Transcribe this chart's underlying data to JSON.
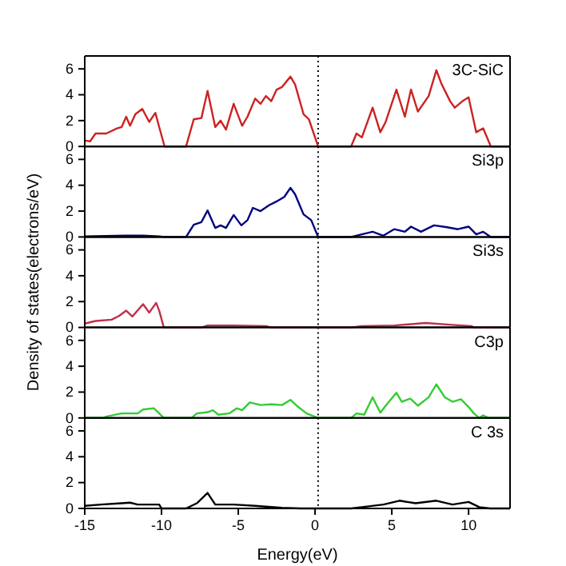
{
  "chart_data": [
    {
      "type": "line",
      "annotations": [
        "3C-SiC"
      ],
      "xlim": [
        -15,
        12.7
      ],
      "xticks": [
        -15,
        -10,
        -5,
        0,
        5,
        10
      ],
      "ylim": [
        0,
        7
      ],
      "yticks": [
        0,
        2,
        4,
        6
      ],
      "tick_labels": "y",
      "ref_lines": [
        {
          "axis": "x",
          "value": 0.2,
          "color": "#000000",
          "line_style": "dotted"
        }
      ],
      "series": [
        {
          "color": "#cc2222",
          "x": [
            -15,
            -14.65,
            -14.3,
            -13.6,
            -12.9,
            -12.6,
            -12.3,
            -12.05,
            -11.7,
            -11.25,
            -10.8,
            -10.4,
            -10.15,
            -9.8,
            -8.4,
            -7.9,
            -7.4,
            -7.0,
            -6.5,
            -6.15,
            -5.8,
            -5.3,
            -4.75,
            -4.4,
            -3.9,
            -3.55,
            -3.2,
            -2.85,
            -2.5,
            -2.15,
            -1.6,
            -1.3,
            -0.75,
            -0.4,
            0.2,
            2.35,
            2.7,
            3.05,
            3.75,
            4.25,
            4.6,
            5.3,
            5.85,
            6.25,
            6.7,
            7.4,
            7.9,
            8.25,
            8.8,
            9.1,
            9.6,
            10.0,
            10.5,
            10.95,
            11.45,
            12.7
          ],
          "values": [
            0.45,
            0.4,
            1.0,
            1.0,
            1.4,
            1.5,
            2.3,
            1.6,
            2.5,
            2.9,
            1.9,
            2.6,
            1.5,
            0,
            0,
            2.1,
            2.2,
            4.3,
            1.5,
            2.0,
            1.3,
            3.3,
            1.6,
            2.3,
            3.7,
            3.3,
            3.9,
            3.5,
            4.4,
            4.6,
            5.4,
            4.8,
            2.5,
            2.1,
            0,
            0,
            1.0,
            0.7,
            3.0,
            1.1,
            1.9,
            4.4,
            2.3,
            4.4,
            2.7,
            3.9,
            5.9,
            4.8,
            3.5,
            3.0,
            3.5,
            3.8,
            1.1,
            1.4,
            0,
            0
          ]
        }
      ]
    },
    {
      "type": "line",
      "annotations": [
        "Si3p"
      ],
      "xlim": [
        -15,
        12.7
      ],
      "xticks": [
        -15,
        -10,
        -5,
        0,
        5,
        10
      ],
      "ylim": [
        0,
        7
      ],
      "yticks": [
        0,
        2,
        4,
        6
      ],
      "tick_labels": "y",
      "ref_lines": [
        {
          "axis": "x",
          "value": 0.2,
          "color": "#000000",
          "line_style": "dotted"
        }
      ],
      "series": [
        {
          "color": "#000080",
          "x": [
            -15,
            -12.4,
            -11.2,
            -10.15,
            -9.8,
            -8.4,
            -7.9,
            -7.4,
            -7.0,
            -6.5,
            -6.15,
            -5.8,
            -5.3,
            -4.8,
            -4.4,
            -4.05,
            -3.55,
            -3.0,
            -2.5,
            -2.0,
            -1.6,
            -1.3,
            -0.75,
            -0.25,
            0.2,
            2.35,
            3.75,
            4.45,
            5.15,
            5.85,
            6.25,
            6.9,
            7.75,
            8.6,
            9.3,
            10.0,
            10.5,
            10.95,
            11.45,
            12.7
          ],
          "values": [
            0.05,
            0.1,
            0.1,
            0.05,
            0,
            0,
            0.95,
            1.15,
            2.05,
            0.7,
            0.9,
            0.7,
            1.7,
            0.9,
            1.3,
            2.25,
            2.0,
            2.45,
            2.75,
            3.1,
            3.8,
            3.3,
            1.75,
            1.3,
            0,
            0,
            0.4,
            0.1,
            0.6,
            0.4,
            0.8,
            0.4,
            0.9,
            0.75,
            0.6,
            0.8,
            0.2,
            0.4,
            0,
            0
          ]
        }
      ]
    },
    {
      "type": "line",
      "annotations": [
        "Si3s"
      ],
      "ylabel": "Density of states(electrons/eV)",
      "xlim": [
        -15,
        12.7
      ],
      "xticks": [
        -15,
        -10,
        -5,
        0,
        5,
        10
      ],
      "ylim": [
        0,
        7
      ],
      "yticks": [
        0,
        2,
        4,
        6
      ],
      "tick_labels": "y",
      "ref_lines": [
        {
          "axis": "x",
          "value": 0.2,
          "color": "#000000",
          "line_style": "dotted"
        }
      ],
      "series": [
        {
          "color": "#c0304a",
          "x": [
            -15,
            -14.3,
            -13.25,
            -12.75,
            -12.3,
            -11.9,
            -11.2,
            -10.8,
            -10.35,
            -10.15,
            -9.85,
            -7.4,
            -7.0,
            -5.3,
            -3.2,
            -2.85,
            2.35,
            3.05,
            5.15,
            7.2,
            8.95,
            10.2,
            10.35,
            12.7
          ],
          "values": [
            0.3,
            0.5,
            0.6,
            0.9,
            1.3,
            0.85,
            1.8,
            1.15,
            1.9,
            1.3,
            0,
            0,
            0.15,
            0.15,
            0.1,
            0,
            0,
            0.1,
            0.15,
            0.35,
            0.2,
            0.1,
            0,
            0
          ]
        }
      ]
    },
    {
      "type": "line",
      "annotations": [
        "C3p"
      ],
      "xlim": [
        -15,
        12.7
      ],
      "xticks": [
        -15,
        -10,
        -5,
        0,
        5,
        10
      ],
      "ylim": [
        0,
        7
      ],
      "yticks": [
        0,
        2,
        4,
        6
      ],
      "tick_labels": "y",
      "ref_lines": [
        {
          "axis": "x",
          "value": 0.2,
          "color": "#000000",
          "line_style": "dotted"
        }
      ],
      "series": [
        {
          "color": "#33cc33",
          "x": [
            -15,
            -13.8,
            -13.6,
            -12.6,
            -11.55,
            -11.2,
            -10.5,
            -10.15,
            -9.85,
            -8.05,
            -7.7,
            -7.0,
            -6.65,
            -6.3,
            -5.6,
            -5.1,
            -4.75,
            -4.25,
            -3.55,
            -2.85,
            -2.15,
            -1.6,
            -1.1,
            -0.55,
            0.2,
            2.35,
            2.7,
            3.2,
            3.75,
            4.25,
            4.6,
            5.3,
            5.65,
            6.2,
            6.7,
            7.4,
            7.9,
            8.45,
            8.95,
            9.5,
            10.0,
            10.35,
            10.7,
            10.95,
            11.3,
            12.7
          ],
          "values": [
            0,
            0,
            0.1,
            0.35,
            0.35,
            0.65,
            0.75,
            0.35,
            0,
            0,
            0.35,
            0.45,
            0.6,
            0.25,
            0.35,
            0.75,
            0.6,
            1.2,
            1.0,
            1.05,
            1.0,
            1.4,
            0.85,
            0.35,
            0,
            0,
            0.35,
            0.25,
            1.6,
            0.4,
            0.95,
            1.95,
            1.25,
            1.5,
            0.95,
            1.6,
            2.6,
            1.6,
            1.25,
            1.45,
            0.85,
            0.35,
            0,
            0.2,
            0,
            0
          ]
        }
      ]
    },
    {
      "type": "line",
      "annotations": [
        "C 3s"
      ],
      "xlabel": "Energy(eV)",
      "xlim": [
        -15,
        12.7
      ],
      "xticks": [
        -15,
        -10,
        -5,
        0,
        5,
        10
      ],
      "ylim": [
        0,
        7
      ],
      "yticks": [
        0,
        2,
        4,
        6
      ],
      "ref_lines": [
        {
          "axis": "x",
          "value": 0.2,
          "color": "#000000",
          "line_style": "dotted"
        }
      ],
      "series": [
        {
          "color": "#000000",
          "x": [
            -15,
            -13.95,
            -12.6,
            -12.05,
            -11.55,
            -10.15,
            -10.0,
            -8.4,
            -7.7,
            -7.0,
            -6.5,
            -5.3,
            -3.9,
            -2.15,
            -0.95,
            2.35,
            3.05,
            4.45,
            5.5,
            6.55,
            7.9,
            8.95,
            10.0,
            10.7,
            11.4,
            12.7
          ],
          "values": [
            0.2,
            0.3,
            0.4,
            0.45,
            0.3,
            0.3,
            0,
            0,
            0.4,
            1.2,
            0.3,
            0.3,
            0.2,
            0.05,
            0,
            0,
            0.1,
            0.3,
            0.6,
            0.4,
            0.6,
            0.3,
            0.5,
            0.1,
            0,
            0
          ]
        }
      ]
    }
  ]
}
